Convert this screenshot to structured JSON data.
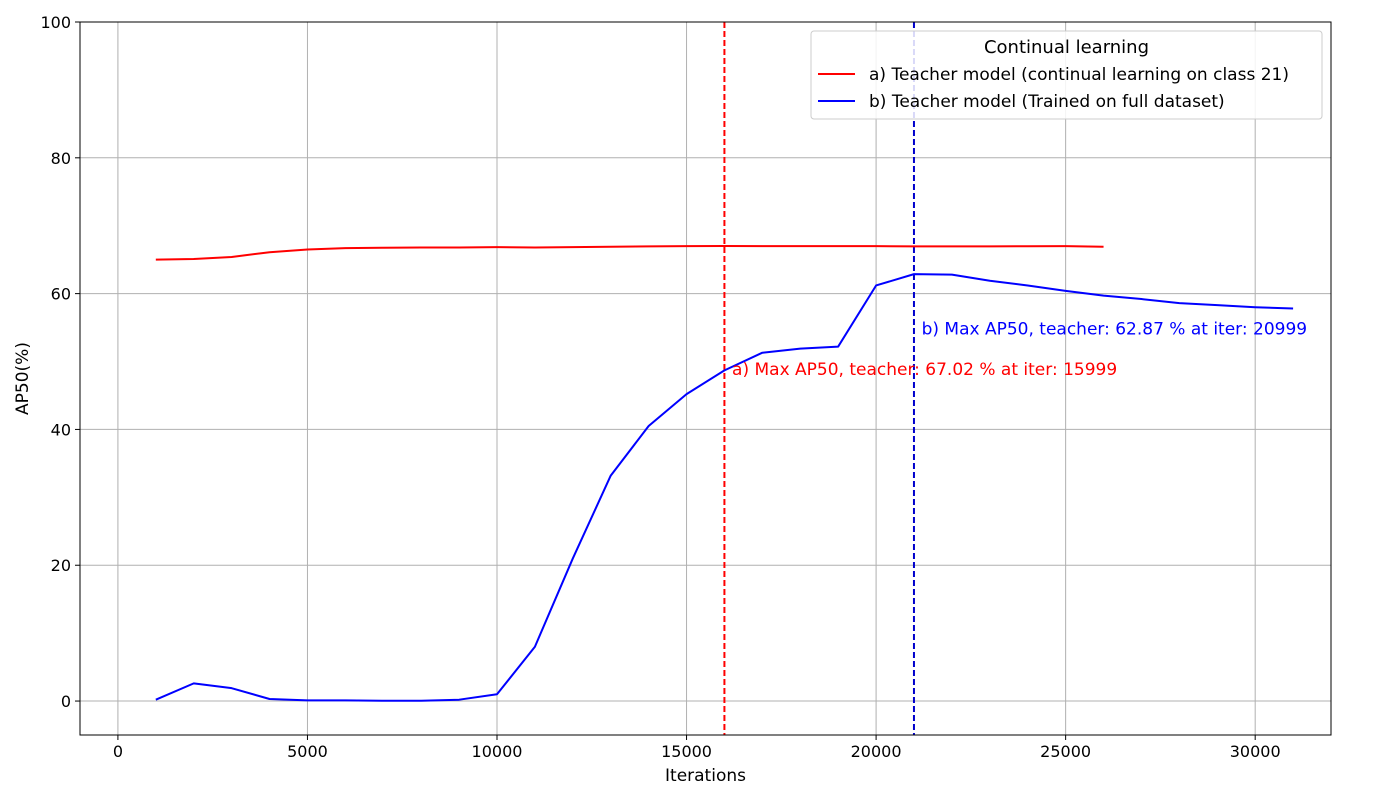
{
  "chart_data": {
    "type": "line",
    "xlabel": "Iterations",
    "ylabel": "AP50(%)",
    "xlim": [
      -1000,
      32000
    ],
    "ylim": [
      -5,
      100
    ],
    "xticks": [
      0,
      5000,
      10000,
      15000,
      20000,
      25000,
      30000
    ],
    "yticks": [
      0,
      20,
      40,
      60,
      80,
      100
    ],
    "grid": true,
    "legend": {
      "title": "Continual learning",
      "placement": "top-right"
    },
    "series": [
      {
        "name": "a) Teacher model (continual learning on class 21)",
        "color": "#ff0000",
        "x": [
          1000,
          2000,
          3000,
          4000,
          5000,
          6000,
          7000,
          8000,
          9000,
          10000,
          11000,
          12000,
          13000,
          14000,
          15000,
          16000,
          17000,
          18000,
          19000,
          20000,
          21000,
          22000,
          23000,
          24000,
          25000,
          26000
        ],
        "y": [
          65.0,
          65.1,
          65.4,
          66.1,
          66.5,
          66.7,
          66.75,
          66.8,
          66.8,
          66.85,
          66.8,
          66.85,
          66.9,
          66.95,
          67.0,
          67.02,
          67.0,
          67.0,
          67.0,
          67.0,
          66.95,
          66.95,
          66.95,
          66.98,
          67.0,
          66.9
        ]
      },
      {
        "name": "b) Teacher model (Trained on full dataset)",
        "color": "#0000ff",
        "x": [
          1000,
          2000,
          3000,
          4000,
          5000,
          6000,
          7000,
          8000,
          9000,
          10000,
          11000,
          12000,
          13000,
          14000,
          15000,
          16000,
          17000,
          18000,
          19000,
          20000,
          21000,
          22000,
          23000,
          24000,
          25000,
          26000,
          27000,
          28000,
          29000,
          30000,
          31000
        ],
        "y": [
          0.2,
          2.6,
          1.9,
          0.3,
          0.1,
          0.1,
          0.05,
          0.05,
          0.2,
          1.0,
          8.0,
          21.0,
          33.2,
          40.5,
          45.2,
          48.7,
          51.3,
          51.9,
          52.2,
          61.2,
          62.87,
          62.8,
          61.9,
          61.2,
          60.4,
          59.7,
          59.2,
          58.6,
          58.3,
          58.0,
          57.8
        ]
      }
    ],
    "vlines": [
      {
        "x": 15999,
        "color": "#ff0000",
        "style": "dashed"
      },
      {
        "x": 20999,
        "color": "#0000cc",
        "style": "dashed"
      }
    ],
    "annotations": [
      {
        "x": 16200,
        "y": 48.0,
        "text": "a) Max AP50, teacher: 67.02 % at iter: 15999",
        "color": "#ff0000"
      },
      {
        "x": 21200,
        "y": 54.0,
        "text": "b) Max AP50, teacher: 62.87 % at iter: 20999",
        "color": "#0000ff"
      }
    ]
  }
}
